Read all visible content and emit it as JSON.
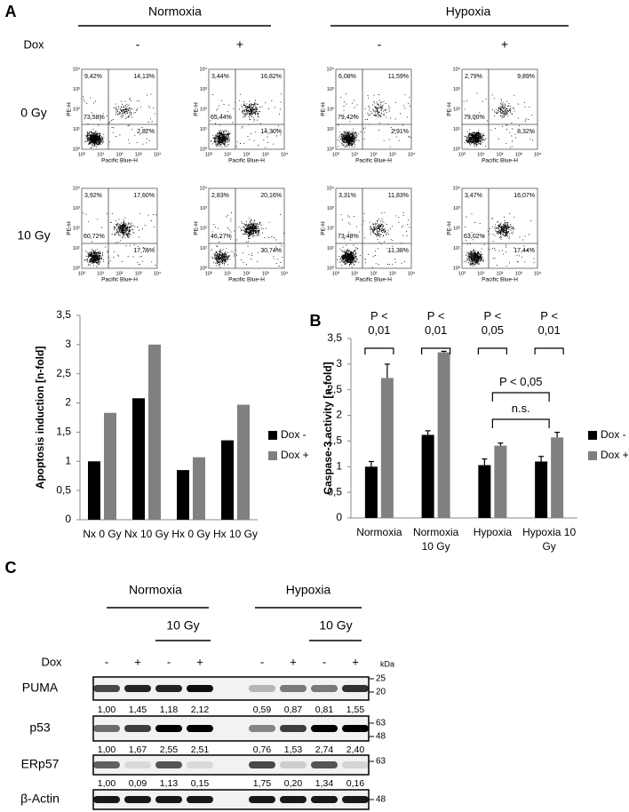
{
  "panel_a": {
    "label": "A",
    "conditions": [
      "Normoxia",
      "Hypoxia"
    ],
    "dox_label": "Dox",
    "dox_levels": [
      "-",
      "+",
      "-",
      "+"
    ],
    "doses": [
      "0 Gy",
      "10 Gy"
    ],
    "x_axis_label": "Pacific Blue-H",
    "y_axis_label": "PE-H",
    "axis_ticks": [
      "10⁰",
      "10¹",
      "10²",
      "10³",
      "10⁴"
    ],
    "plots": [
      [
        "9,42%",
        "14,13%",
        "73,58%",
        "2,87%"
      ],
      [
        "3,44%",
        "16,82%",
        "65,44%",
        "14,30%"
      ],
      [
        "6,08%",
        "11,59%",
        "79,42%",
        "2,91%"
      ],
      [
        "2,79%",
        "9,89%",
        "79,00%",
        "8,32%"
      ],
      [
        "3,92%",
        "17,60%",
        "60,72%",
        "17,76%"
      ],
      [
        "2,83%",
        "20,16%",
        "46,27%",
        "30,74%"
      ],
      [
        "3,31%",
        "11,83%",
        "73,48%",
        "11,38%"
      ],
      [
        "3,47%",
        "16,07%",
        "63,02%",
        "17,44%"
      ]
    ]
  },
  "chart_data": [
    {
      "type": "bar",
      "y_label": "Apoptosis induction [n-fold]",
      "categories": [
        "Nx 0 Gy",
        "Nx 10 Gy",
        "Hx 0 Gy",
        "Hx 10 Gy"
      ],
      "series": [
        {
          "name": "Dox -",
          "color": "#000000",
          "values": [
            1.0,
            2.08,
            0.85,
            1.36
          ]
        },
        {
          "name": "Dox +",
          "color": "#808080",
          "values": [
            1.83,
            3.0,
            1.07,
            1.97
          ]
        }
      ],
      "ylim": [
        0,
        3.5
      ],
      "yticks": [
        0,
        {
          "value": 0.5,
          "label": "0,5"
        },
        1,
        {
          "value": 1.5,
          "label": "1,5"
        },
        2,
        {
          "value": 2.5,
          "label": "2,5"
        },
        3,
        {
          "value": 3.5,
          "label": "3,5"
        }
      ],
      "legend": "right"
    },
    {
      "type": "bar",
      "panel_label": "B",
      "y_label": "Caspase-3 activity [n-fold]",
      "categories": [
        "Normoxia",
        "Normoxia 10 Gy",
        "Hypoxia",
        "Hypoxia 10 Gy"
      ],
      "series": [
        {
          "name": "Dox -",
          "color": "#000000",
          "values": [
            1.0,
            1.62,
            1.03,
            1.1
          ],
          "errors": [
            0.1,
            0.08,
            0.12,
            0.1
          ]
        },
        {
          "name": "Dox +",
          "color": "#808080",
          "values": [
            2.73,
            3.23,
            1.41,
            1.57
          ],
          "errors": [
            0.27,
            0.02,
            0.05,
            0.1
          ]
        }
      ],
      "ylim": [
        0,
        3.5
      ],
      "yticks": [
        0,
        {
          "value": 0.5,
          "label": "0,5"
        },
        1,
        {
          "value": 1.5,
          "label": "1,5"
        },
        2,
        {
          "value": 2.5,
          "label": "2,5"
        },
        3,
        {
          "value": 3.5,
          "label": "3,5"
        }
      ],
      "legend": "right",
      "annotations": [
        "P < 0,01",
        "P < 0,01",
        "P < 0,05",
        "P < 0,01",
        "P < 0,05",
        "n.s."
      ]
    }
  ],
  "panel_c": {
    "label": "C",
    "conditions": [
      "Normoxia",
      "Hypoxia"
    ],
    "dose_labels": [
      "10 Gy",
      "10 Gy"
    ],
    "dox_label": "Dox",
    "dox_levels": [
      "-",
      "+",
      "-",
      "+",
      "-",
      "+",
      "-",
      "+"
    ],
    "kda_label": "kDa",
    "rows": [
      {
        "name": "PUMA",
        "quant": [
          "1,00",
          "1,45",
          "1,18",
          "2,12",
          "0,59",
          "0,87",
          "0,81",
          "1,55"
        ],
        "markers": [
          "25",
          "20"
        ]
      },
      {
        "name": "p53",
        "quant": [
          "1,00",
          "1,67",
          "2,55",
          "2,51",
          "0,76",
          "1,53",
          "2,74",
          "2,40"
        ],
        "markers": [
          "63",
          "48"
        ]
      },
      {
        "name": "ERp57",
        "quant": [
          "1,00",
          "0,09",
          "1,13",
          "0,15",
          "1,75",
          "0,20",
          "1,34",
          "0,16"
        ],
        "markers": [
          "63"
        ]
      },
      {
        "name": "β-Actin",
        "markers": [
          "48"
        ]
      }
    ]
  }
}
